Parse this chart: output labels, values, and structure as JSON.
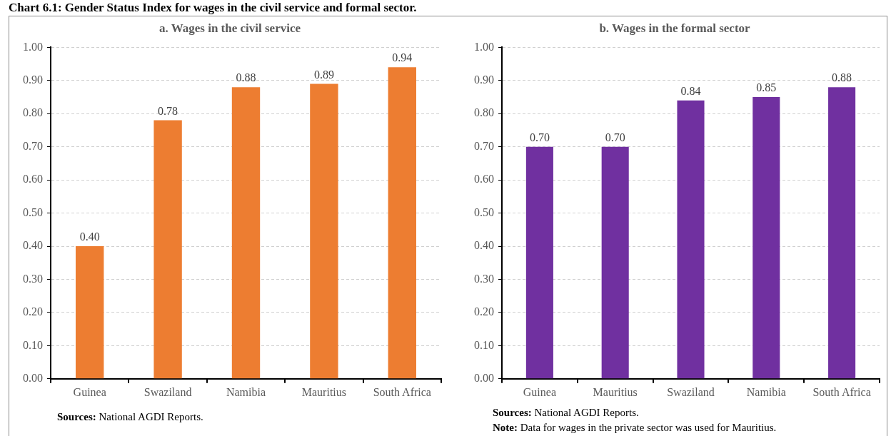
{
  "chart_data": [
    {
      "type": "bar",
      "title": "a. Wages in the civil service",
      "categories": [
        "Guinea",
        "Swaziland",
        "Namibia",
        "Mauritius",
        "South Africa"
      ],
      "values": [
        0.4,
        0.78,
        0.88,
        0.89,
        0.94
      ],
      "value_labels": [
        "0.40",
        "0.78",
        "0.88",
        "0.89",
        "0.94"
      ],
      "color": "#ed7d31",
      "ylim": [
        0,
        1
      ],
      "yticks": [
        {
          "value": 0,
          "label": "0.00"
        },
        {
          "value": 0.1,
          "label": "0.10"
        },
        {
          "value": 0.2,
          "label": "0.20"
        },
        {
          "value": 0.3,
          "label": "0.30"
        },
        {
          "value": 0.4,
          "label": "0.40"
        },
        {
          "value": 0.5,
          "label": "0.50"
        },
        {
          "value": 0.6,
          "label": "0.60"
        },
        {
          "value": 0.7,
          "label": "0.70"
        },
        {
          "value": 0.8,
          "label": "0.80"
        },
        {
          "value": 0.9,
          "label": "0.90"
        },
        {
          "value": 1,
          "label": "1.00"
        }
      ],
      "grid": "y",
      "annotations": [
        "Chart 6.1: Gender Status Index for wages in the civil service and formal sector.",
        "Sources: National AGDI Reports."
      ]
    },
    {
      "type": "bar",
      "title": "b. Wages in the formal sector",
      "categories": [
        "Guinea",
        "Mauritius",
        "Swaziland",
        "Namibia",
        "South Africa"
      ],
      "values": [
        0.7,
        0.7,
        0.84,
        0.85,
        0.88
      ],
      "value_labels": [
        "0.70",
        "0.70",
        "0.84",
        "0.85",
        "0.88"
      ],
      "color": "#7030a0",
      "ylim": [
        0,
        1
      ],
      "yticks": [
        {
          "value": 0,
          "label": "0.00"
        },
        {
          "value": 0.1,
          "label": "0.10"
        },
        {
          "value": 0.2,
          "label": "0.20"
        },
        {
          "value": 0.3,
          "label": "0.30"
        },
        {
          "value": 0.4,
          "label": "0.40"
        },
        {
          "value": 0.5,
          "label": "0.50"
        },
        {
          "value": 0.6,
          "label": "0.60"
        },
        {
          "value": 0.7,
          "label": "0.70"
        },
        {
          "value": 0.8,
          "label": "0.80"
        },
        {
          "value": 0.9,
          "label": "0.90"
        },
        {
          "value": 1,
          "label": "1.00"
        }
      ],
      "grid": "y",
      "annotations": [
        "Sources: National AGDI Reports.",
        "Note: Data for wages in the private sector was used for Mauritius."
      ]
    }
  ]
}
